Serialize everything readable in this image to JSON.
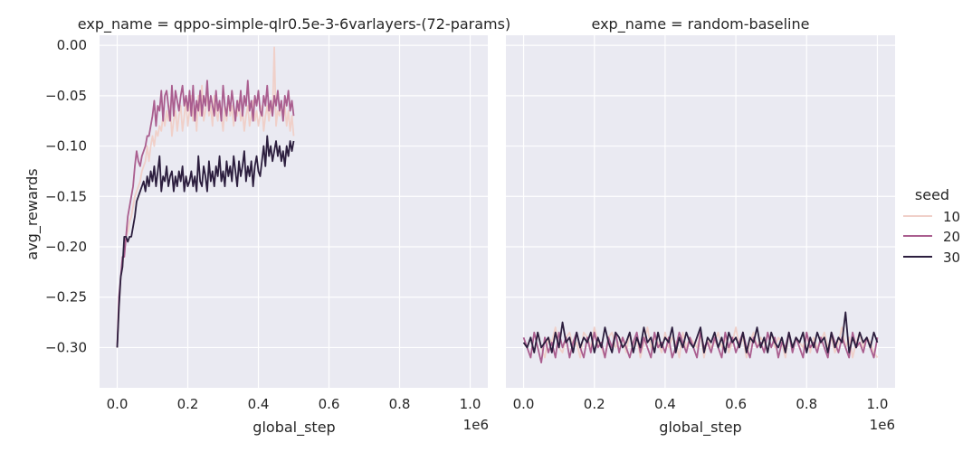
{
  "chart_data": {
    "type": "line",
    "facet_variable": "exp_name",
    "xlabel": "global_step",
    "ylabel": "avg_rewards",
    "x_offset_label": "1e6",
    "xlim": [
      -50000,
      1050000
    ],
    "ylim": [
      -0.34,
      0.01
    ],
    "x_ticks": [
      0,
      200000,
      400000,
      600000,
      800000,
      1000000
    ],
    "x_tick_labels": [
      "0.0",
      "0.2",
      "0.4",
      "0.6",
      "0.8",
      "1.0"
    ],
    "y_ticks": [
      0,
      -0.05,
      -0.1,
      -0.15,
      -0.2,
      -0.25,
      -0.3
    ],
    "y_tick_labels": [
      "0.00",
      "−0.05",
      "−0.10",
      "−0.15",
      "−0.20",
      "−0.25",
      "−0.30"
    ],
    "grid": true,
    "legend": {
      "title": "seed",
      "placement": "right",
      "entries": [
        {
          "label": "10",
          "color": "#f0d0c9"
        },
        {
          "label": "20",
          "color": "#aa5e8f"
        },
        {
          "label": "30",
          "color": "#2c1e3e"
        }
      ]
    },
    "panels": [
      {
        "title": "exp_name = qppo-simple-qlr0.5e-3-6varlayers-(72-params)",
        "x_start": 0,
        "x_step": 5000,
        "series": [
          {
            "name": "10",
            "color": "#f0d0c9",
            "values": [
              -0.3,
              -0.26,
              -0.23,
              -0.22,
              -0.2,
              -0.19,
              -0.185,
              -0.175,
              -0.17,
              -0.16,
              -0.15,
              -0.145,
              -0.14,
              -0.135,
              -0.125,
              -0.12,
              -0.115,
              -0.1,
              -0.115,
              -0.1,
              -0.09,
              -0.1,
              -0.085,
              -0.09,
              -0.08,
              -0.085,
              -0.07,
              -0.08,
              -0.065,
              -0.075,
              -0.06,
              -0.09,
              -0.075,
              -0.065,
              -0.085,
              -0.07,
              -0.06,
              -0.085,
              -0.07,
              -0.055,
              -0.08,
              -0.065,
              -0.05,
              -0.075,
              -0.06,
              -0.085,
              -0.05,
              -0.07,
              -0.04,
              -0.075,
              -0.065,
              -0.045,
              -0.07,
              -0.06,
              -0.08,
              -0.05,
              -0.065,
              -0.075,
              -0.055,
              -0.07,
              -0.085,
              -0.06,
              -0.075,
              -0.05,
              -0.07,
              -0.06,
              -0.08,
              -0.065,
              -0.07,
              -0.055,
              -0.075,
              -0.065,
              -0.085,
              -0.07,
              -0.06,
              -0.08,
              -0.07,
              -0.055,
              -0.075,
              -0.065,
              -0.08,
              -0.07,
              -0.06,
              -0.085,
              -0.07,
              -0.06,
              -0.075,
              -0.06,
              -0.07,
              -0.002,
              -0.08,
              -0.065,
              -0.07,
              -0.055,
              -0.075,
              -0.06,
              -0.08,
              -0.065,
              -0.085,
              -0.07,
              -0.09
            ]
          },
          {
            "name": "20",
            "color": "#aa5e8f",
            "values": [
              -0.3,
              -0.25,
              -0.23,
              -0.21,
              -0.21,
              -0.19,
              -0.17,
              -0.16,
              -0.15,
              -0.14,
              -0.12,
              -0.105,
              -0.115,
              -0.12,
              -0.11,
              -0.105,
              -0.1,
              -0.09,
              -0.09,
              -0.08,
              -0.07,
              -0.055,
              -0.08,
              -0.06,
              -0.065,
              -0.045,
              -0.075,
              -0.05,
              -0.045,
              -0.06,
              -0.075,
              -0.04,
              -0.07,
              -0.045,
              -0.055,
              -0.065,
              -0.05,
              -0.04,
              -0.06,
              -0.05,
              -0.065,
              -0.045,
              -0.07,
              -0.04,
              -0.075,
              -0.055,
              -0.065,
              -0.045,
              -0.07,
              -0.05,
              -0.06,
              -0.035,
              -0.065,
              -0.05,
              -0.06,
              -0.07,
              -0.045,
              -0.065,
              -0.055,
              -0.075,
              -0.04,
              -0.06,
              -0.07,
              -0.05,
              -0.065,
              -0.045,
              -0.06,
              -0.075,
              -0.055,
              -0.065,
              -0.045,
              -0.07,
              -0.05,
              -0.06,
              -0.035,
              -0.065,
              -0.055,
              -0.075,
              -0.05,
              -0.06,
              -0.045,
              -0.065,
              -0.07,
              -0.05,
              -0.06,
              -0.04,
              -0.065,
              -0.055,
              -0.07,
              -0.05,
              -0.06,
              -0.045,
              -0.065,
              -0.055,
              -0.075,
              -0.05,
              -0.06,
              -0.045,
              -0.065,
              -0.055,
              -0.07
            ]
          },
          {
            "name": "30",
            "color": "#2c1e3e",
            "values": [
              -0.3,
              -0.26,
              -0.23,
              -0.22,
              -0.19,
              -0.19,
              -0.195,
              -0.19,
              -0.19,
              -0.18,
              -0.17,
              -0.155,
              -0.15,
              -0.145,
              -0.14,
              -0.135,
              -0.145,
              -0.13,
              -0.14,
              -0.125,
              -0.135,
              -0.12,
              -0.14,
              -0.125,
              -0.11,
              -0.145,
              -0.13,
              -0.135,
              -0.12,
              -0.14,
              -0.13,
              -0.125,
              -0.145,
              -0.13,
              -0.14,
              -0.125,
              -0.135,
              -0.12,
              -0.145,
              -0.13,
              -0.14,
              -0.135,
              -0.125,
              -0.14,
              -0.13,
              -0.145,
              -0.11,
              -0.135,
              -0.14,
              -0.12,
              -0.13,
              -0.145,
              -0.115,
              -0.135,
              -0.125,
              -0.14,
              -0.12,
              -0.13,
              -0.11,
              -0.135,
              -0.125,
              -0.14,
              -0.115,
              -0.13,
              -0.12,
              -0.135,
              -0.11,
              -0.125,
              -0.14,
              -0.115,
              -0.13,
              -0.12,
              -0.105,
              -0.135,
              -0.12,
              -0.13,
              -0.115,
              -0.14,
              -0.12,
              -0.11,
              -0.125,
              -0.13,
              -0.115,
              -0.1,
              -0.12,
              -0.09,
              -0.11,
              -0.1,
              -0.115,
              -0.105,
              -0.095,
              -0.11,
              -0.1,
              -0.115,
              -0.105,
              -0.12,
              -0.1,
              -0.11,
              -0.095,
              -0.105,
              -0.095
            ]
          }
        ]
      },
      {
        "title": "exp_name = random-baseline",
        "x_start": 0,
        "x_step": 10000,
        "series": [
          {
            "name": "10",
            "color": "#f0d0c9",
            "values": [
              -0.295,
              -0.3,
              -0.29,
              -0.305,
              -0.285,
              -0.3,
              -0.31,
              -0.29,
              -0.295,
              -0.28,
              -0.3,
              -0.305,
              -0.29,
              -0.285,
              -0.3,
              -0.295,
              -0.31,
              -0.285,
              -0.29,
              -0.3,
              -0.28,
              -0.295,
              -0.3,
              -0.31,
              -0.29,
              -0.285,
              -0.3,
              -0.295,
              -0.29,
              -0.305,
              -0.285,
              -0.3,
              -0.29,
              -0.31,
              -0.295,
              -0.28,
              -0.3,
              -0.29,
              -0.295,
              -0.305,
              -0.285,
              -0.3,
              -0.29,
              -0.295,
              -0.31,
              -0.285,
              -0.3,
              -0.29,
              -0.295,
              -0.3,
              -0.285,
              -0.31,
              -0.29,
              -0.3,
              -0.295,
              -0.285,
              -0.3,
              -0.29,
              -0.305,
              -0.295,
              -0.28,
              -0.3,
              -0.29,
              -0.31,
              -0.295,
              -0.285,
              -0.3,
              -0.29,
              -0.295,
              -0.305,
              -0.285,
              -0.3,
              -0.29,
              -0.295,
              -0.31,
              -0.285,
              -0.3,
              -0.29,
              -0.295,
              -0.3,
              -0.285,
              -0.305,
              -0.29,
              -0.3,
              -0.295,
              -0.285,
              -0.3,
              -0.29,
              -0.305,
              -0.295,
              -0.28,
              -0.3,
              -0.29,
              -0.31,
              -0.295,
              -0.285,
              -0.3,
              -0.29,
              -0.295,
              -0.305,
              -0.31
            ]
          },
          {
            "name": "20",
            "color": "#aa5e8f",
            "values": [
              -0.29,
              -0.3,
              -0.31,
              -0.285,
              -0.3,
              -0.315,
              -0.29,
              -0.305,
              -0.295,
              -0.31,
              -0.285,
              -0.3,
              -0.29,
              -0.31,
              -0.295,
              -0.285,
              -0.3,
              -0.31,
              -0.29,
              -0.305,
              -0.285,
              -0.3,
              -0.295,
              -0.31,
              -0.29,
              -0.3,
              -0.285,
              -0.305,
              -0.29,
              -0.3,
              -0.31,
              -0.295,
              -0.285,
              -0.305,
              -0.29,
              -0.3,
              -0.31,
              -0.285,
              -0.3,
              -0.295,
              -0.305,
              -0.29,
              -0.31,
              -0.3,
              -0.285,
              -0.295,
              -0.305,
              -0.29,
              -0.3,
              -0.31,
              -0.285,
              -0.3,
              -0.295,
              -0.305,
              -0.29,
              -0.3,
              -0.31,
              -0.285,
              -0.3,
              -0.29,
              -0.305,
              -0.295,
              -0.285,
              -0.3,
              -0.31,
              -0.29,
              -0.3,
              -0.295,
              -0.305,
              -0.285,
              -0.3,
              -0.29,
              -0.31,
              -0.295,
              -0.3,
              -0.285,
              -0.305,
              -0.29,
              -0.3,
              -0.31,
              -0.285,
              -0.3,
              -0.295,
              -0.305,
              -0.29,
              -0.3,
              -0.31,
              -0.285,
              -0.295,
              -0.305,
              -0.29,
              -0.3,
              -0.31,
              -0.285,
              -0.3,
              -0.295,
              -0.305,
              -0.29,
              -0.3,
              -0.31,
              -0.29
            ]
          },
          {
            "name": "30",
            "color": "#2c1e3e",
            "values": [
              -0.295,
              -0.3,
              -0.29,
              -0.305,
              -0.285,
              -0.3,
              -0.295,
              -0.29,
              -0.305,
              -0.285,
              -0.3,
              -0.275,
              -0.295,
              -0.29,
              -0.305,
              -0.285,
              -0.3,
              -0.29,
              -0.295,
              -0.285,
              -0.305,
              -0.29,
              -0.3,
              -0.28,
              -0.295,
              -0.305,
              -0.285,
              -0.29,
              -0.3,
              -0.295,
              -0.285,
              -0.305,
              -0.29,
              -0.3,
              -0.28,
              -0.295,
              -0.29,
              -0.305,
              -0.285,
              -0.3,
              -0.29,
              -0.295,
              -0.28,
              -0.305,
              -0.29,
              -0.3,
              -0.285,
              -0.295,
              -0.3,
              -0.29,
              -0.28,
              -0.305,
              -0.29,
              -0.295,
              -0.285,
              -0.3,
              -0.29,
              -0.305,
              -0.285,
              -0.295,
              -0.29,
              -0.3,
              -0.285,
              -0.305,
              -0.29,
              -0.295,
              -0.28,
              -0.3,
              -0.29,
              -0.305,
              -0.285,
              -0.295,
              -0.3,
              -0.29,
              -0.305,
              -0.285,
              -0.3,
              -0.29,
              -0.295,
              -0.285,
              -0.305,
              -0.29,
              -0.3,
              -0.285,
              -0.295,
              -0.29,
              -0.305,
              -0.285,
              -0.3,
              -0.29,
              -0.295,
              -0.265,
              -0.305,
              -0.29,
              -0.3,
              -0.285,
              -0.295,
              -0.29,
              -0.3,
              -0.285,
              -0.295
            ]
          }
        ]
      }
    ]
  }
}
